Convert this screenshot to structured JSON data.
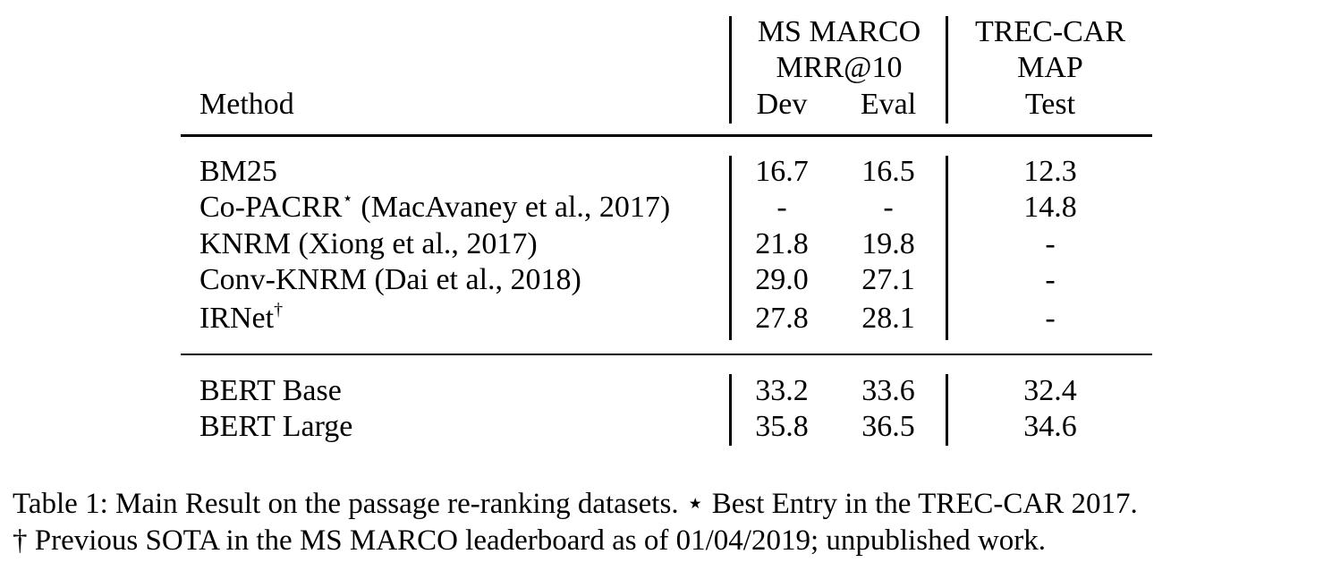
{
  "table": {
    "header": {
      "method": "Method",
      "group1": {
        "name": "MS MARCO",
        "metric": "MRR@10",
        "col1": "Dev",
        "col2": "Eval"
      },
      "group2": {
        "name": "TREC-CAR",
        "metric": "MAP",
        "col1": "Test"
      }
    },
    "rows": [
      {
        "method": "BM25",
        "mark": "",
        "citation": "",
        "dev": "16.7",
        "eval": "16.5",
        "test": "12.3"
      },
      {
        "method": "Co-PACRR",
        "mark": "⋆",
        "citation": " (MacAvaney et al., 2017)",
        "dev": "-",
        "eval": "-",
        "test": "14.8"
      },
      {
        "method": "KNRM",
        "mark": "",
        "citation": " (Xiong et al., 2017)",
        "dev": "21.8",
        "eval": "19.8",
        "test": "-"
      },
      {
        "method": "Conv-KNRM",
        "mark": "",
        "citation": " (Dai et al., 2018)",
        "dev": "29.0",
        "eval": "27.1",
        "test": "-"
      },
      {
        "method": "IRNet",
        "mark": "†",
        "citation": "",
        "dev": "27.8",
        "eval": "28.1",
        "test": "-"
      },
      {
        "method": "BERT Base",
        "mark": "",
        "citation": "",
        "dev": "33.2",
        "eval": "33.6",
        "test": "32.4"
      },
      {
        "method": "BERT Large",
        "mark": "",
        "citation": "",
        "dev": "35.8",
        "eval": "36.5",
        "test": "34.6"
      }
    ]
  },
  "caption": {
    "line1": "Table 1:  Main Result on the passage re-ranking datasets.  ⋆ Best Entry in the TREC-CAR 2017.",
    "line2": "† Previous SOTA in the MS MARCO leaderboard as of 01/04/2019; unpublished work."
  }
}
